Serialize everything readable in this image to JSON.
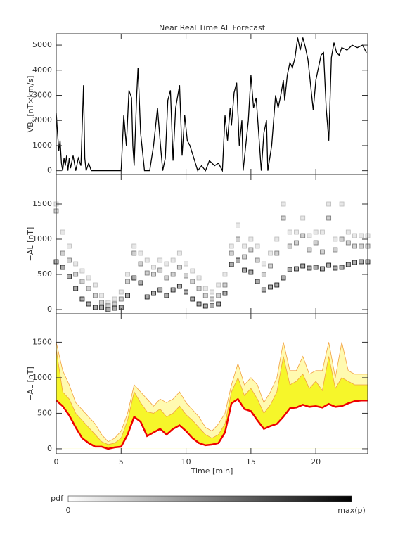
{
  "chart_data": [
    {
      "type": "line",
      "title": "Near Real Time AL Forecast",
      "ylabel": [
        "VB",
        "s",
        " [nT×km/s]"
      ],
      "xlim": [
        0,
        24
      ],
      "ylim": [
        -150,
        5450
      ],
      "yticks": [
        0,
        1000,
        2000,
        3000,
        4000,
        5000
      ],
      "x": [
        0,
        0.1,
        0.2,
        0.3,
        0.4,
        0.5,
        0.6,
        0.7,
        0.8,
        0.9,
        1.0,
        1.1,
        1.3,
        1.5,
        1.7,
        1.9,
        2.1,
        2.2,
        2.3,
        2.5,
        2.7,
        4.5,
        5.0,
        5.2,
        5.4,
        5.6,
        5.8,
        5.9,
        6.0,
        6.2,
        6.3,
        6.5,
        6.8,
        7.2,
        7.5,
        7.8,
        8.0,
        8.2,
        8.4,
        8.6,
        8.8,
        9.0,
        9.2,
        9.5,
        9.7,
        9.9,
        10.1,
        10.3,
        10.6,
        10.9,
        11.2,
        11.5,
        11.8,
        12.2,
        12.5,
        12.8,
        13.0,
        13.2,
        13.4,
        13.5,
        13.7,
        13.9,
        14.1,
        14.3,
        14.4,
        14.8,
        15.0,
        15.2,
        15.4,
        15.6,
        15.8,
        16.0,
        16.2,
        16.3,
        16.6,
        16.9,
        17.1,
        17.3,
        17.5,
        17.6,
        17.8,
        18.0,
        18.2,
        18.4,
        18.6,
        18.8,
        19.0,
        19.2,
        19.4,
        19.6,
        19.8,
        20.0,
        20.2,
        20.4,
        20.6,
        20.8,
        21.0,
        21.2,
        21.4,
        21.6,
        21.8,
        22.0,
        22.4,
        22.8,
        23.2,
        23.6,
        23.9
      ],
      "series": [
        {
          "color": "#000000",
          "values": [
            2300,
            1500,
            800,
            1200,
            300,
            0,
            500,
            200,
            600,
            0,
            500,
            100,
            600,
            0,
            500,
            200,
            3400,
            500,
            0,
            300,
            0,
            0,
            0,
            2200,
            1000,
            3200,
            2900,
            1000,
            200,
            3000,
            4100,
            1500,
            0,
            0,
            1000,
            2500,
            1200,
            0,
            500,
            2800,
            3200,
            400,
            2500,
            3400,
            600,
            2200,
            1200,
            1000,
            500,
            0,
            200,
            0,
            400,
            200,
            300,
            0,
            2200,
            1200,
            2500,
            1800,
            3100,
            3500,
            1000,
            2000,
            0,
            2000,
            3800,
            2500,
            2900,
            1500,
            0,
            1500,
            2000,
            0,
            1000,
            3000,
            2500,
            3000,
            3600,
            2800,
            3800,
            4300,
            4100,
            4500,
            5300,
            4800,
            5300,
            4900,
            4400,
            3400,
            2400,
            3600,
            4100,
            4600,
            4700,
            2500,
            1200,
            4500,
            5100,
            4700,
            4600,
            4900,
            4800,
            5000,
            4900,
            5000,
            4700
          ]
        }
      ]
    },
    {
      "type": "scatter",
      "ylabel": "−AL [nT]",
      "xlim": [
        0,
        24
      ],
      "ylim": [
        -60,
        1920
      ],
      "yticks": [
        0,
        500,
        1000,
        1500
      ],
      "x": [
        0,
        0.5,
        1,
        1.5,
        2,
        2.5,
        3,
        3.5,
        4,
        4.5,
        5,
        5.5,
        6,
        6.5,
        7,
        7.5,
        8,
        8.5,
        9,
        9.5,
        10,
        10.5,
        11,
        11.5,
        12,
        12.5,
        13,
        13.5,
        14,
        14.5,
        15,
        15.5,
        16,
        16.5,
        17,
        17.5,
        18,
        18.5,
        19,
        19.5,
        20,
        20.5,
        21,
        21.5,
        22,
        22.5,
        23,
        23.5,
        24
      ],
      "series": [
        {
          "color": "#bbbbbb",
          "values": [
            1500,
            1100,
            900,
            650,
            550,
            450,
            350,
            200,
            100,
            150,
            250,
            500,
            900,
            800,
            700,
            600,
            700,
            650,
            700,
            800,
            650,
            550,
            450,
            300,
            250,
            350,
            500,
            900,
            1200,
            900,
            1000,
            900,
            650,
            800,
            1000,
            1500,
            1100,
            1100,
            1300,
            1050,
            1100,
            1100,
            1500,
            1000,
            1500,
            1100,
            1050,
            1050,
            1050
          ]
        },
        {
          "color": "#777777",
          "values": [
            1400,
            800,
            700,
            500,
            400,
            300,
            200,
            100,
            60,
            80,
            150,
            400,
            800,
            650,
            520,
            500,
            560,
            450,
            500,
            600,
            480,
            400,
            300,
            200,
            150,
            200,
            350,
            800,
            1000,
            750,
            850,
            700,
            500,
            620,
            800,
            1300,
            900,
            950,
            1050,
            850,
            950,
            820,
            1300,
            850,
            1000,
            950,
            900,
            900,
            900
          ]
        },
        {
          "color": "#111111",
          "values": [
            680,
            600,
            470,
            300,
            150,
            80,
            30,
            30,
            0,
            20,
            30,
            200,
            450,
            380,
            180,
            230,
            280,
            200,
            280,
            330,
            250,
            150,
            80,
            50,
            60,
            80,
            230,
            640,
            700,
            560,
            530,
            400,
            280,
            320,
            350,
            450,
            570,
            580,
            620,
            590,
            600,
            580,
            630,
            590,
            600,
            640,
            670,
            680,
            680
          ]
        }
      ]
    },
    {
      "type": "area",
      "ylabel": "−AL [nT]",
      "xlabel": "Time [min]",
      "xlim": [
        0,
        24
      ],
      "ylim": [
        -70,
        1900
      ],
      "yticks": [
        0,
        500,
        1000,
        1500
      ],
      "xticks": [
        0,
        5,
        10,
        15,
        20
      ],
      "x": [
        0,
        0.5,
        1,
        1.5,
        2,
        2.5,
        3,
        3.5,
        4,
        4.5,
        5,
        5.5,
        6,
        6.5,
        7,
        7.5,
        8,
        8.5,
        9,
        9.5,
        10,
        10.5,
        11,
        11.5,
        12,
        12.5,
        13,
        13.5,
        14,
        14.5,
        15,
        15.5,
        16,
        16.5,
        17,
        17.5,
        18,
        18.5,
        19,
        19.5,
        20,
        20.5,
        21,
        21.5,
        22,
        22.5,
        23,
        23.5,
        24
      ],
      "series": [
        {
          "color": "#f2a040",
          "fill": "#fffab0",
          "values": [
            1500,
            1100,
            900,
            650,
            550,
            450,
            350,
            200,
            100,
            150,
            250,
            500,
            900,
            800,
            700,
            600,
            700,
            650,
            700,
            800,
            650,
            550,
            450,
            300,
            250,
            350,
            500,
            900,
            1200,
            900,
            1000,
            900,
            650,
            800,
            1000,
            1500,
            1100,
            1100,
            1300,
            1050,
            1100,
            1100,
            1500,
            1000,
            1500,
            1100,
            1050,
            1050,
            1050
          ]
        },
        {
          "color": "#f2a040",
          "fill": "#f6f62a",
          "values": [
            1400,
            800,
            700,
            500,
            400,
            300,
            200,
            100,
            60,
            80,
            150,
            400,
            800,
            650,
            520,
            500,
            560,
            450,
            500,
            600,
            480,
            400,
            300,
            200,
            150,
            200,
            350,
            800,
            1000,
            750,
            850,
            700,
            500,
            620,
            800,
            1300,
            900,
            950,
            1050,
            850,
            950,
            820,
            1300,
            850,
            1000,
            950,
            900,
            900,
            900
          ]
        },
        {
          "color": "#ee0000",
          "fill": "#ffffff",
          "values": [
            680,
            600,
            470,
            300,
            150,
            80,
            30,
            30,
            0,
            20,
            30,
            200,
            450,
            380,
            180,
            230,
            280,
            200,
            280,
            330,
            250,
            150,
            80,
            50,
            60,
            80,
            230,
            640,
            700,
            560,
            530,
            400,
            280,
            320,
            350,
            450,
            570,
            580,
            620,
            590,
            600,
            580,
            630,
            590,
            600,
            640,
            670,
            680,
            680
          ]
        }
      ]
    }
  ],
  "colorbar": {
    "label": "pdf",
    "min_label": "0",
    "max_label": "max(p)"
  }
}
